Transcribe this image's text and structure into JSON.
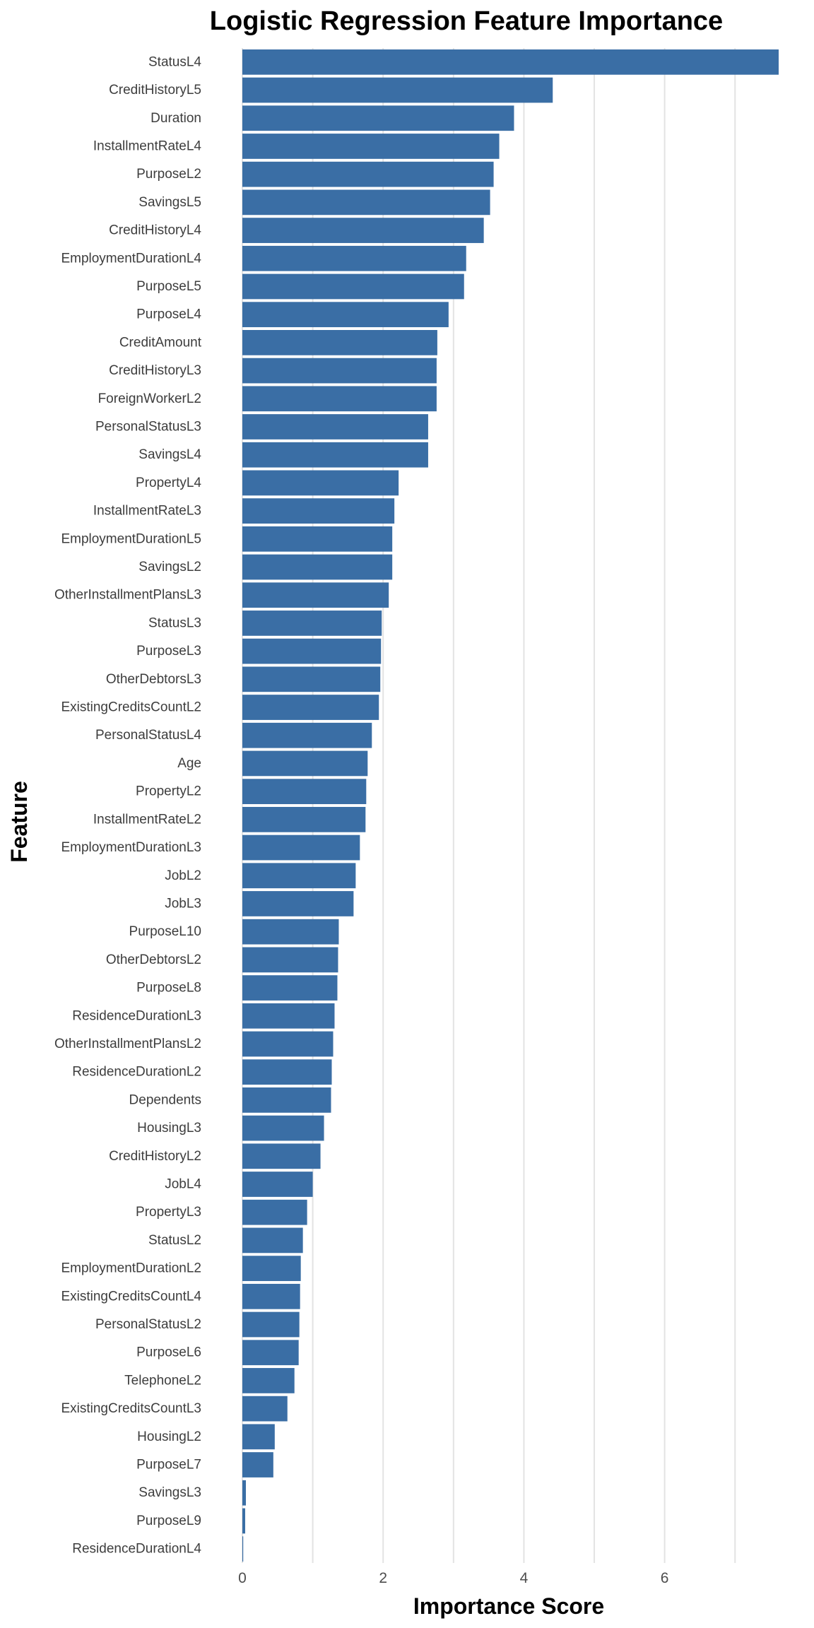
{
  "chart_data": {
    "type": "bar",
    "orientation": "horizontal",
    "title": "Logistic Regression Feature Importance",
    "xlabel": "Importance Score",
    "ylabel": "Feature",
    "xlim": [
      0,
      7.6
    ],
    "xticks": [
      0,
      2,
      4,
      6
    ],
    "grid": true,
    "bar_color": "#3a6ea5",
    "categories": [
      "StatusL4",
      "CreditHistoryL5",
      "Duration",
      "InstallmentRateL4",
      "PurposeL2",
      "SavingsL5",
      "CreditHistoryL4",
      "EmploymentDurationL4",
      "PurposeL5",
      "PurposeL4",
      "CreditAmount",
      "CreditHistoryL3",
      "ForeignWorkerL2",
      "PersonalStatusL3",
      "SavingsL4",
      "PropertyL4",
      "InstallmentRateL3",
      "EmploymentDurationL5",
      "SavingsL2",
      "OtherInstallmentPlansL3",
      "StatusL3",
      "PurposeL3",
      "OtherDebtorsL3",
      "ExistingCreditsCountL2",
      "PersonalStatusL4",
      "Age",
      "PropertyL2",
      "InstallmentRateL2",
      "EmploymentDurationL3",
      "JobL2",
      "JobL3",
      "PurposeL10",
      "OtherDebtorsL2",
      "PurposeL8",
      "ResidenceDurationL3",
      "OtherInstallmentPlansL2",
      "ResidenceDurationL2",
      "Dependents",
      "HousingL3",
      "CreditHistoryL2",
      "JobL4",
      "PropertyL3",
      "StatusL2",
      "EmploymentDurationL2",
      "ExistingCreditsCountL4",
      "PersonalStatusL2",
      "PurposeL6",
      "TelephoneL2",
      "ExistingCreditsCountL3",
      "HousingL2",
      "PurposeL7",
      "SavingsL3",
      "PurposeL9",
      "ResidenceDurationL4"
    ],
    "values": [
      7.62,
      4.41,
      3.86,
      3.65,
      3.57,
      3.52,
      3.43,
      3.18,
      3.15,
      2.93,
      2.77,
      2.76,
      2.76,
      2.64,
      2.64,
      2.22,
      2.16,
      2.13,
      2.13,
      2.08,
      1.98,
      1.97,
      1.96,
      1.94,
      1.84,
      1.78,
      1.76,
      1.75,
      1.67,
      1.61,
      1.58,
      1.37,
      1.36,
      1.35,
      1.31,
      1.29,
      1.27,
      1.26,
      1.16,
      1.11,
      1.0,
      0.92,
      0.86,
      0.83,
      0.82,
      0.81,
      0.8,
      0.74,
      0.64,
      0.46,
      0.44,
      0.05,
      0.04,
      0.01
    ]
  }
}
